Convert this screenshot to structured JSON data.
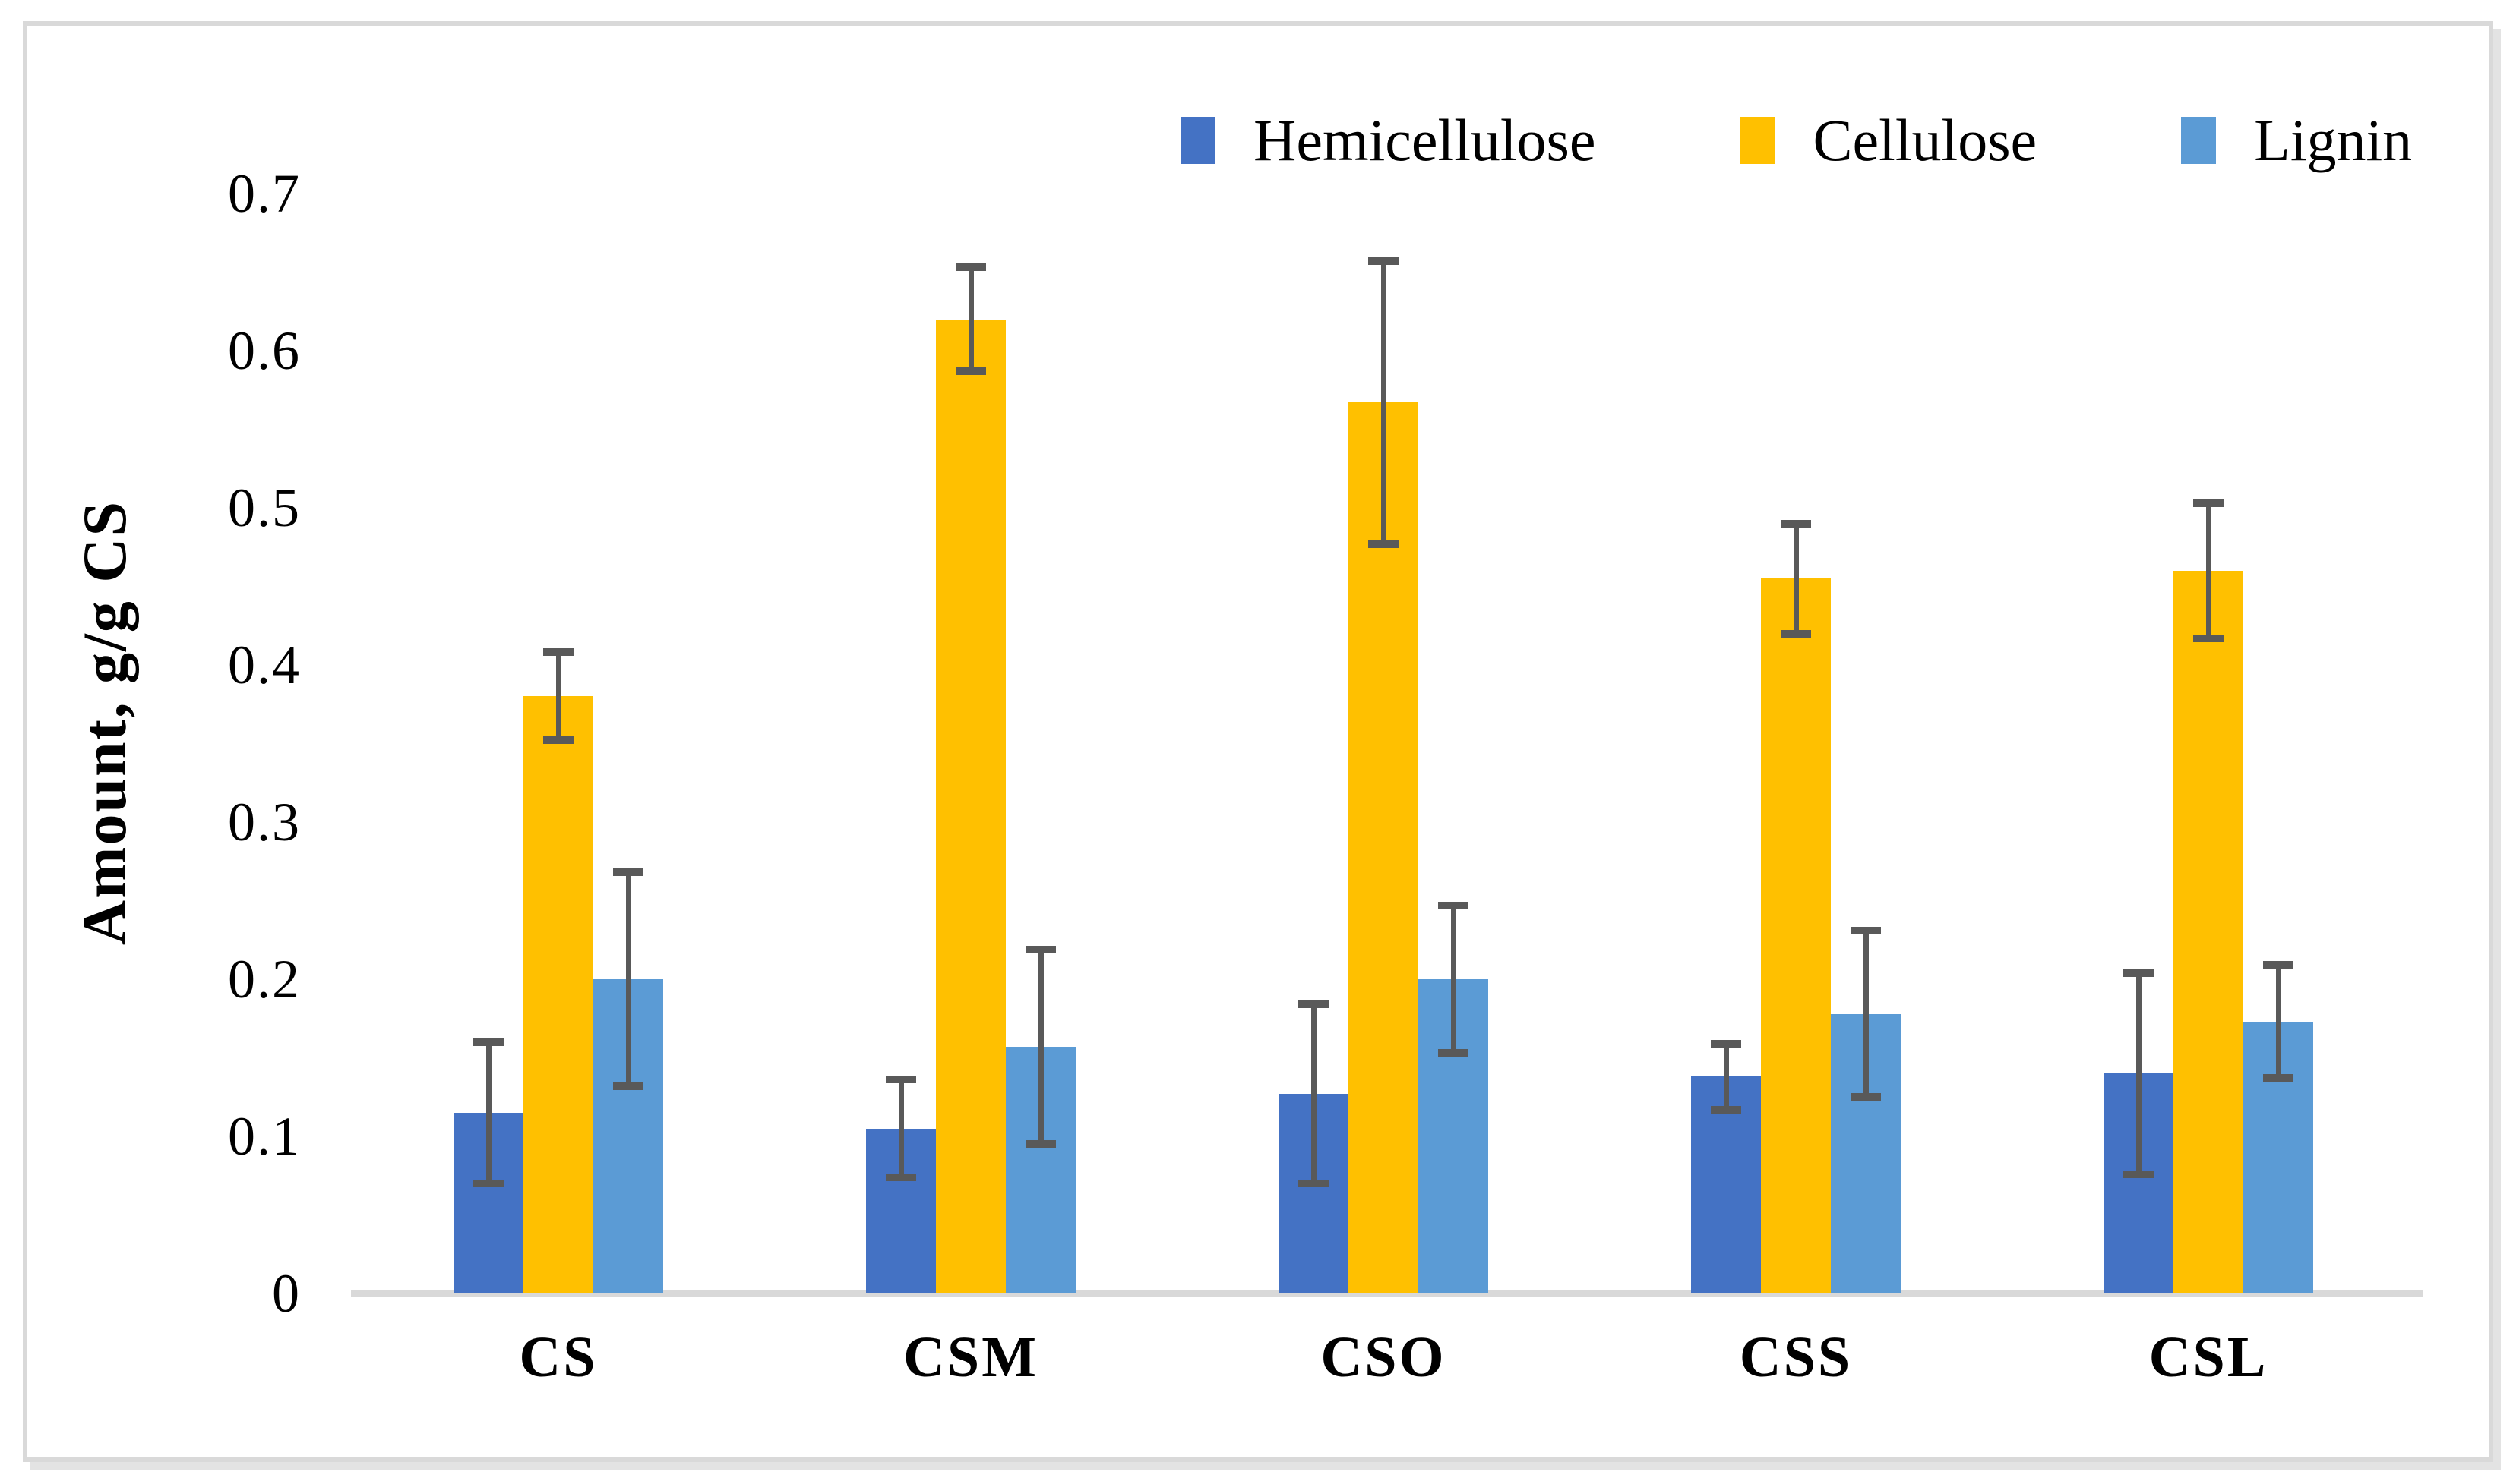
{
  "figure": {
    "background": "#FFFFFF",
    "border_color": "#D9D9D9"
  },
  "chart_data": {
    "type": "bar",
    "title": "",
    "xlabel": "",
    "ylabel": "Amount, g/g CS",
    "ylim": [
      0,
      0.7
    ],
    "ytick_step": 0.1,
    "ytick_labels": [
      "0",
      "0.1",
      "0.2",
      "0.3",
      "0.4",
      "0.5",
      "0.6",
      "0.7"
    ],
    "grid": false,
    "legend_position": "top",
    "categories": [
      "CS",
      "CSM",
      "CSO",
      "CSS",
      "CSL"
    ],
    "series": [
      {
        "name": "Hemicellulose",
        "color": "#4472C4",
        "values": [
          0.115,
          0.105,
          0.127,
          0.138,
          0.14
        ],
        "errors": [
          0.045,
          0.031,
          0.057,
          0.021,
          0.064
        ]
      },
      {
        "name": "Cellulose",
        "color": "#FFC000",
        "values": [
          0.38,
          0.62,
          0.567,
          0.455,
          0.46
        ],
        "errors": [
          0.028,
          0.033,
          0.09,
          0.035,
          0.043
        ]
      },
      {
        "name": "Lignin",
        "color": "#5B9BD5",
        "values": [
          0.2,
          0.157,
          0.2,
          0.178,
          0.173
        ],
        "errors": [
          0.068,
          0.062,
          0.047,
          0.053,
          0.036
        ]
      }
    ],
    "error_bar_color": "#595959",
    "axis_line_color": "#D9D9D9"
  }
}
